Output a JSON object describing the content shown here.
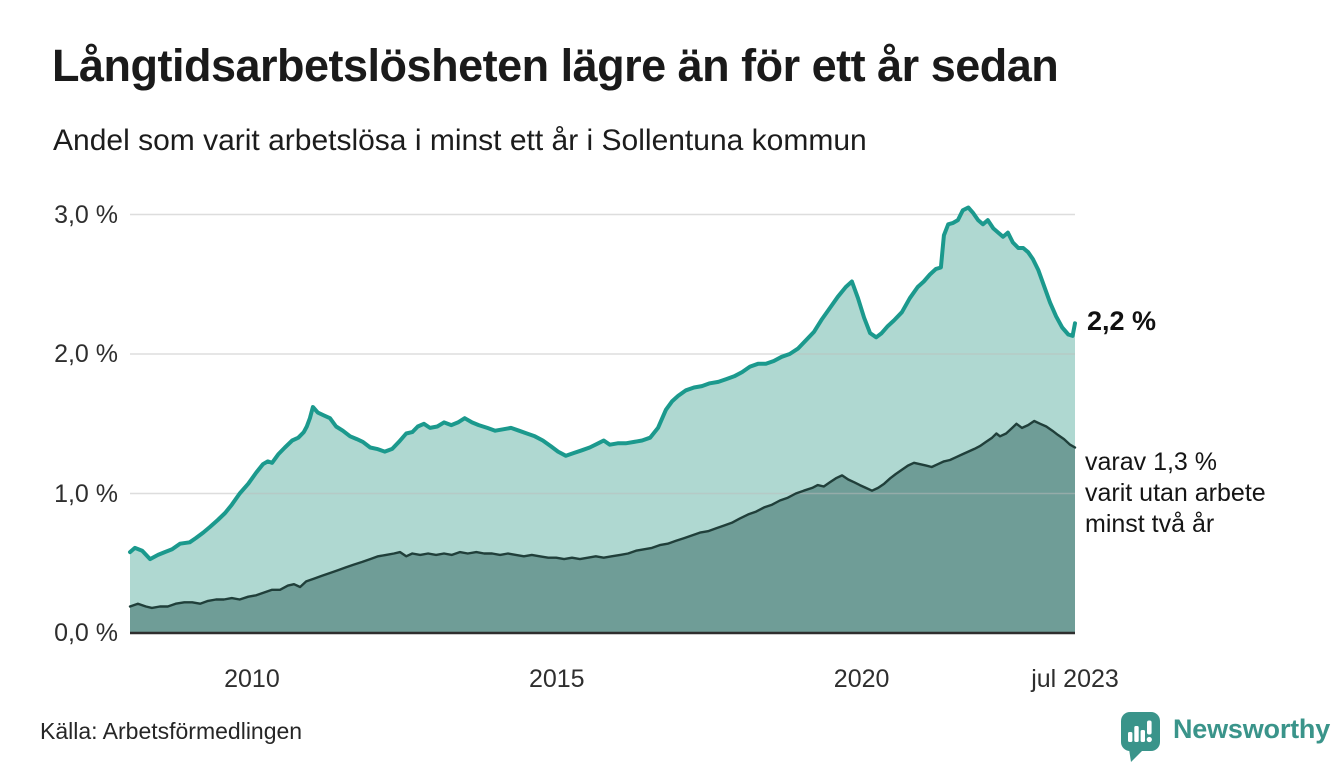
{
  "header": {
    "title": "Långtidsarbetslösheten lägre än för ett år sedan",
    "subtitle": "Andel som varit arbetslösa i minst ett år i Sollentuna kommun"
  },
  "footer": {
    "source": "Källa: Arbetsförmedlingen",
    "brand_name": "Newsworthy",
    "brand_color": "#3a948a"
  },
  "colors": {
    "total_line": "#1b998d",
    "total_fill": "#afd8d1",
    "two_years_line": "#203f3a",
    "two_years_fill": "#6f9d97",
    "gridline": "#bbbbbb",
    "axis_line": "#2e2e2e",
    "text": "#1a1a1a"
  },
  "chart_data": {
    "type": "area",
    "title": "Långtidsarbetslösheten lägre än för ett år sedan",
    "subtitle": "Andel som varit arbetslösa i minst ett år i Sollentuna kommun",
    "x_unit": "decimal_year",
    "x_range": [
      2008.0,
      2023.5
    ],
    "ylim": [
      0,
      3.2
    ],
    "grid": "horizontal",
    "legend_position": "end-of-line labels",
    "y_ticks": [
      {
        "v": 0,
        "label": "0,0 %"
      },
      {
        "v": 1,
        "label": "1,0 %"
      },
      {
        "v": 2,
        "label": "2,0 %"
      },
      {
        "v": 3,
        "label": "3,0 %"
      }
    ],
    "x_ticks": [
      {
        "t": 2010,
        "label": "2010"
      },
      {
        "t": 2015,
        "label": "2015"
      },
      {
        "t": 2020,
        "label": "2020"
      },
      {
        "t": 2023.5,
        "label": "jul 2023"
      }
    ],
    "series": [
      {
        "name": "arbetslosa_minst_ett_ar_total",
        "end_value": 2.2,
        "end_label": "2,2 %",
        "points": [
          [
            2008.0,
            0.58
          ],
          [
            2008.08,
            0.61
          ],
          [
            2008.2,
            0.59
          ],
          [
            2008.33,
            0.53
          ],
          [
            2008.46,
            0.56
          ],
          [
            2008.57,
            0.58
          ],
          [
            2008.69,
            0.6
          ],
          [
            2008.82,
            0.64
          ],
          [
            2008.98,
            0.65
          ],
          [
            2009.08,
            0.68
          ],
          [
            2009.2,
            0.72
          ],
          [
            2009.31,
            0.76
          ],
          [
            2009.44,
            0.81
          ],
          [
            2009.56,
            0.86
          ],
          [
            2009.67,
            0.92
          ],
          [
            2009.8,
            1.0
          ],
          [
            2009.94,
            1.07
          ],
          [
            2010.07,
            1.15
          ],
          [
            2010.18,
            1.21
          ],
          [
            2010.26,
            1.23
          ],
          [
            2010.33,
            1.22
          ],
          [
            2010.43,
            1.28
          ],
          [
            2010.54,
            1.33
          ],
          [
            2010.66,
            1.38
          ],
          [
            2010.76,
            1.4
          ],
          [
            2010.85,
            1.44
          ],
          [
            2010.9,
            1.48
          ],
          [
            2010.95,
            1.54
          ],
          [
            2011.0,
            1.62
          ],
          [
            2011.08,
            1.58
          ],
          [
            2011.18,
            1.56
          ],
          [
            2011.28,
            1.54
          ],
          [
            2011.38,
            1.48
          ],
          [
            2011.49,
            1.45
          ],
          [
            2011.61,
            1.41
          ],
          [
            2011.72,
            1.39
          ],
          [
            2011.82,
            1.37
          ],
          [
            2011.94,
            1.33
          ],
          [
            2012.05,
            1.32
          ],
          [
            2012.18,
            1.3
          ],
          [
            2012.3,
            1.32
          ],
          [
            2012.41,
            1.37
          ],
          [
            2012.53,
            1.43
          ],
          [
            2012.63,
            1.44
          ],
          [
            2012.72,
            1.48
          ],
          [
            2012.82,
            1.5
          ],
          [
            2012.92,
            1.47
          ],
          [
            2013.04,
            1.48
          ],
          [
            2013.15,
            1.51
          ],
          [
            2013.27,
            1.49
          ],
          [
            2013.38,
            1.51
          ],
          [
            2013.49,
            1.54
          ],
          [
            2013.61,
            1.51
          ],
          [
            2013.72,
            1.49
          ],
          [
            2013.86,
            1.47
          ],
          [
            2013.99,
            1.45
          ],
          [
            2014.12,
            1.46
          ],
          [
            2014.25,
            1.47
          ],
          [
            2014.38,
            1.45
          ],
          [
            2014.51,
            1.43
          ],
          [
            2014.64,
            1.41
          ],
          [
            2014.77,
            1.38
          ],
          [
            2014.9,
            1.34
          ],
          [
            2015.02,
            1.3
          ],
          [
            2015.15,
            1.27
          ],
          [
            2015.28,
            1.29
          ],
          [
            2015.41,
            1.31
          ],
          [
            2015.54,
            1.33
          ],
          [
            2015.68,
            1.36
          ],
          [
            2015.77,
            1.38
          ],
          [
            2015.87,
            1.35
          ],
          [
            2016.0,
            1.36
          ],
          [
            2016.13,
            1.36
          ],
          [
            2016.27,
            1.37
          ],
          [
            2016.4,
            1.38
          ],
          [
            2016.53,
            1.4
          ],
          [
            2016.66,
            1.47
          ],
          [
            2016.79,
            1.6
          ],
          [
            2016.89,
            1.66
          ],
          [
            2016.99,
            1.7
          ],
          [
            2017.12,
            1.74
          ],
          [
            2017.25,
            1.76
          ],
          [
            2017.38,
            1.77
          ],
          [
            2017.51,
            1.79
          ],
          [
            2017.65,
            1.8
          ],
          [
            2017.78,
            1.82
          ],
          [
            2017.91,
            1.84
          ],
          [
            2018.04,
            1.87
          ],
          [
            2018.17,
            1.91
          ],
          [
            2018.3,
            1.93
          ],
          [
            2018.43,
            1.93
          ],
          [
            2018.56,
            1.95
          ],
          [
            2018.69,
            1.98
          ],
          [
            2018.82,
            2.0
          ],
          [
            2018.96,
            2.04
          ],
          [
            2019.09,
            2.1
          ],
          [
            2019.22,
            2.16
          ],
          [
            2019.35,
            2.25
          ],
          [
            2019.48,
            2.33
          ],
          [
            2019.61,
            2.41
          ],
          [
            2019.74,
            2.48
          ],
          [
            2019.84,
            2.52
          ],
          [
            2019.94,
            2.4
          ],
          [
            2020.04,
            2.26
          ],
          [
            2020.14,
            2.15
          ],
          [
            2020.24,
            2.12
          ],
          [
            2020.33,
            2.15
          ],
          [
            2020.43,
            2.2
          ],
          [
            2020.53,
            2.24
          ],
          [
            2020.66,
            2.3
          ],
          [
            2020.79,
            2.4
          ],
          [
            2020.92,
            2.48
          ],
          [
            2021.02,
            2.52
          ],
          [
            2021.12,
            2.57
          ],
          [
            2021.22,
            2.61
          ],
          [
            2021.3,
            2.62
          ],
          [
            2021.35,
            2.85
          ],
          [
            2021.42,
            2.93
          ],
          [
            2021.5,
            2.94
          ],
          [
            2021.58,
            2.96
          ],
          [
            2021.66,
            3.03
          ],
          [
            2021.75,
            3.05
          ],
          [
            2021.83,
            3.01
          ],
          [
            2021.91,
            2.96
          ],
          [
            2021.99,
            2.93
          ],
          [
            2022.07,
            2.96
          ],
          [
            2022.16,
            2.9
          ],
          [
            2022.24,
            2.87
          ],
          [
            2022.32,
            2.84
          ],
          [
            2022.4,
            2.87
          ],
          [
            2022.48,
            2.8
          ],
          [
            2022.57,
            2.76
          ],
          [
            2022.65,
            2.76
          ],
          [
            2022.73,
            2.73
          ],
          [
            2022.81,
            2.68
          ],
          [
            2022.9,
            2.6
          ],
          [
            2022.99,
            2.49
          ],
          [
            2023.09,
            2.37
          ],
          [
            2023.19,
            2.27
          ],
          [
            2023.29,
            2.19
          ],
          [
            2023.39,
            2.14
          ],
          [
            2023.46,
            2.13
          ],
          [
            2023.5,
            2.22
          ]
        ]
      },
      {
        "name": "arbetslosa_minst_tva_ar",
        "end_value": 1.3,
        "end_label_lines": [
          "varav 1,3 %",
          "varit utan arbete",
          "minst två år"
        ],
        "points": [
          [
            2008.0,
            0.19
          ],
          [
            2008.13,
            0.21
          ],
          [
            2008.26,
            0.19
          ],
          [
            2008.36,
            0.18
          ],
          [
            2008.49,
            0.19
          ],
          [
            2008.62,
            0.19
          ],
          [
            2008.75,
            0.21
          ],
          [
            2008.89,
            0.22
          ],
          [
            2009.02,
            0.22
          ],
          [
            2009.15,
            0.21
          ],
          [
            2009.28,
            0.23
          ],
          [
            2009.41,
            0.24
          ],
          [
            2009.54,
            0.24
          ],
          [
            2009.67,
            0.25
          ],
          [
            2009.8,
            0.24
          ],
          [
            2009.94,
            0.26
          ],
          [
            2010.07,
            0.27
          ],
          [
            2010.2,
            0.29
          ],
          [
            2010.33,
            0.31
          ],
          [
            2010.46,
            0.31
          ],
          [
            2010.59,
            0.34
          ],
          [
            2010.69,
            0.35
          ],
          [
            2010.79,
            0.33
          ],
          [
            2010.89,
            0.37
          ],
          [
            2011.02,
            0.39
          ],
          [
            2011.15,
            0.41
          ],
          [
            2011.28,
            0.43
          ],
          [
            2011.41,
            0.45
          ],
          [
            2011.54,
            0.47
          ],
          [
            2011.67,
            0.49
          ],
          [
            2011.81,
            0.51
          ],
          [
            2011.94,
            0.53
          ],
          [
            2012.07,
            0.55
          ],
          [
            2012.2,
            0.56
          ],
          [
            2012.33,
            0.57
          ],
          [
            2012.43,
            0.58
          ],
          [
            2012.53,
            0.55
          ],
          [
            2012.63,
            0.57
          ],
          [
            2012.76,
            0.56
          ],
          [
            2012.89,
            0.57
          ],
          [
            2013.02,
            0.56
          ],
          [
            2013.15,
            0.57
          ],
          [
            2013.28,
            0.56
          ],
          [
            2013.41,
            0.58
          ],
          [
            2013.54,
            0.57
          ],
          [
            2013.68,
            0.58
          ],
          [
            2013.81,
            0.57
          ],
          [
            2013.94,
            0.57
          ],
          [
            2014.07,
            0.56
          ],
          [
            2014.2,
            0.57
          ],
          [
            2014.33,
            0.56
          ],
          [
            2014.46,
            0.55
          ],
          [
            2014.59,
            0.56
          ],
          [
            2014.72,
            0.55
          ],
          [
            2014.86,
            0.54
          ],
          [
            2014.99,
            0.54
          ],
          [
            2015.12,
            0.53
          ],
          [
            2015.25,
            0.54
          ],
          [
            2015.38,
            0.53
          ],
          [
            2015.51,
            0.54
          ],
          [
            2015.64,
            0.55
          ],
          [
            2015.77,
            0.54
          ],
          [
            2015.9,
            0.55
          ],
          [
            2016.04,
            0.56
          ],
          [
            2016.17,
            0.57
          ],
          [
            2016.3,
            0.59
          ],
          [
            2016.43,
            0.6
          ],
          [
            2016.56,
            0.61
          ],
          [
            2016.69,
            0.63
          ],
          [
            2016.82,
            0.64
          ],
          [
            2016.95,
            0.66
          ],
          [
            2017.09,
            0.68
          ],
          [
            2017.22,
            0.7
          ],
          [
            2017.35,
            0.72
          ],
          [
            2017.48,
            0.73
          ],
          [
            2017.61,
            0.75
          ],
          [
            2017.74,
            0.77
          ],
          [
            2017.87,
            0.79
          ],
          [
            2018.0,
            0.82
          ],
          [
            2018.14,
            0.85
          ],
          [
            2018.27,
            0.87
          ],
          [
            2018.4,
            0.9
          ],
          [
            2018.53,
            0.92
          ],
          [
            2018.66,
            0.95
          ],
          [
            2018.79,
            0.97
          ],
          [
            2018.92,
            1.0
          ],
          [
            2019.05,
            1.02
          ],
          [
            2019.19,
            1.04
          ],
          [
            2019.28,
            1.06
          ],
          [
            2019.38,
            1.05
          ],
          [
            2019.48,
            1.08
          ],
          [
            2019.58,
            1.11
          ],
          [
            2019.68,
            1.13
          ],
          [
            2019.78,
            1.1
          ],
          [
            2019.88,
            1.08
          ],
          [
            2019.97,
            1.06
          ],
          [
            2020.07,
            1.04
          ],
          [
            2020.17,
            1.02
          ],
          [
            2020.27,
            1.04
          ],
          [
            2020.37,
            1.07
          ],
          [
            2020.47,
            1.11
          ],
          [
            2020.56,
            1.14
          ],
          [
            2020.66,
            1.17
          ],
          [
            2020.76,
            1.2
          ],
          [
            2020.86,
            1.22
          ],
          [
            2020.96,
            1.21
          ],
          [
            2021.06,
            1.2
          ],
          [
            2021.15,
            1.19
          ],
          [
            2021.25,
            1.21
          ],
          [
            2021.35,
            1.23
          ],
          [
            2021.45,
            1.24
          ],
          [
            2021.55,
            1.26
          ],
          [
            2021.65,
            1.28
          ],
          [
            2021.75,
            1.3
          ],
          [
            2021.85,
            1.32
          ],
          [
            2021.94,
            1.34
          ],
          [
            2022.04,
            1.37
          ],
          [
            2022.14,
            1.4
          ],
          [
            2022.21,
            1.43
          ],
          [
            2022.27,
            1.41
          ],
          [
            2022.37,
            1.43
          ],
          [
            2022.47,
            1.47
          ],
          [
            2022.54,
            1.5
          ],
          [
            2022.63,
            1.47
          ],
          [
            2022.73,
            1.49
          ],
          [
            2022.83,
            1.52
          ],
          [
            2022.93,
            1.5
          ],
          [
            2023.03,
            1.48
          ],
          [
            2023.13,
            1.45
          ],
          [
            2023.22,
            1.42
          ],
          [
            2023.32,
            1.39
          ],
          [
            2023.42,
            1.35
          ],
          [
            2023.5,
            1.33
          ]
        ]
      }
    ]
  }
}
